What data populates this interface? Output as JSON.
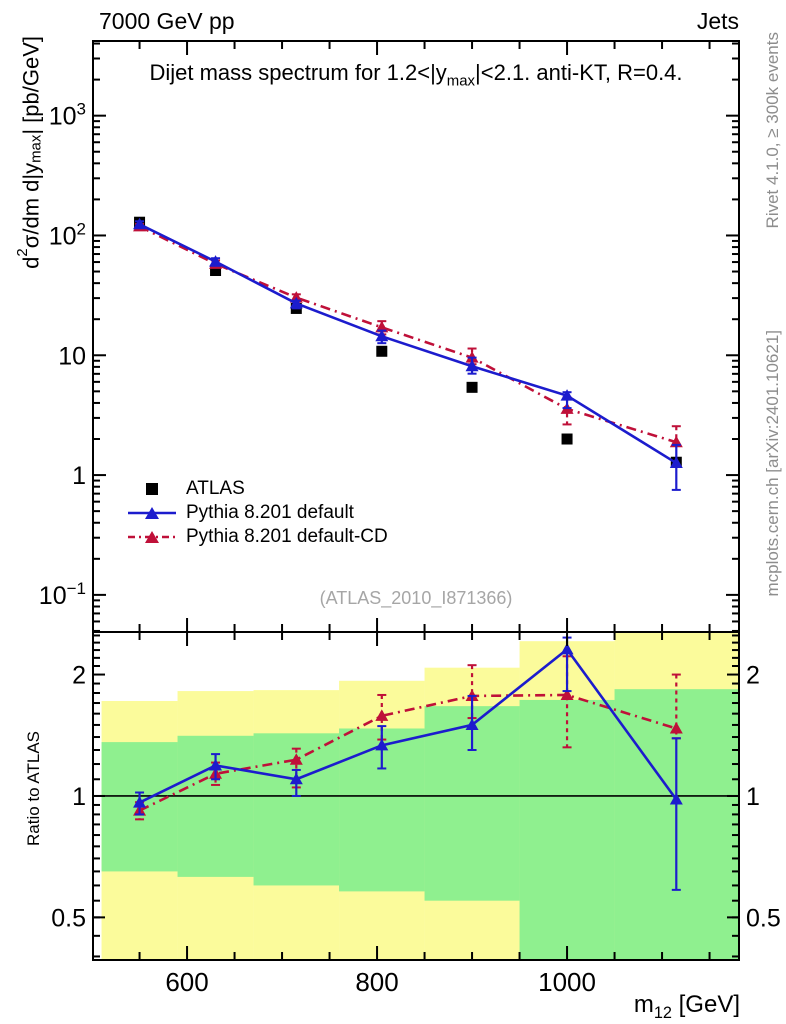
{
  "header": {
    "beam": "7000 GeV pp",
    "channel": "Jets"
  },
  "main_panel": {
    "title": {
      "p1": "Dijet mass spectrum for 1.2<|y",
      "sub": "max",
      "p2": "|<2.1.  anti-KT, R=0.4."
    },
    "y_title": {
      "p1": "d",
      "sup": "2",
      "p2": "σ/dm d|y",
      "sub": "max",
      "p3": "| [pb/GeV]"
    },
    "watermark": "(ATLAS_2010_I871366)"
  },
  "ratio_panel": {
    "y_title": "Ratio to ATLAS"
  },
  "x_axis": {
    "title": {
      "p1": "m",
      "sub": "12",
      "p2": " [GeV]"
    },
    "min": 501,
    "max": 1181,
    "major_ticks": [
      600,
      800,
      1000
    ],
    "tick_labels": [
      "600",
      "800",
      "1000"
    ],
    "minor_step": 50
  },
  "main_y_axis": {
    "top": 4200,
    "bottom": 0.049,
    "tick_labels": [
      {
        "text": "10",
        "exp": "3",
        "value": 1000
      },
      {
        "text": "10",
        "exp": "2",
        "value": 100
      },
      {
        "text": "10",
        "exp": "",
        "value": 10
      },
      {
        "text": "1",
        "exp": "",
        "value": 1
      },
      {
        "text": "10",
        "exp": "−1",
        "value": 0.1
      }
    ]
  },
  "ratio_y_axis": {
    "top": 2.55,
    "bottom": 0.392,
    "tick_labels": [
      {
        "text": "2",
        "value": 2
      },
      {
        "text": "1",
        "value": 1
      },
      {
        "text": "0.5",
        "value": 0.5
      }
    ]
  },
  "side_texts": {
    "rivet": "Rivet 4.1.0, ≥ 300k events",
    "mcplots": "mcplots.cern.ch [arXiv:2401.10621]"
  },
  "colors": {
    "blue": "#1c1ccd",
    "red": "#bf1039",
    "yellow_band": "#fbfb9b",
    "green_band": "#8ff08f",
    "black": "#000000"
  },
  "chart_data": {
    "type": "line",
    "title": "Dijet mass spectrum for 1.2<|ymax|<2.1. anti-KT, R=0.4.",
    "xlabel": "m12 [GeV]",
    "ylabel": "d2σ/dm d|ymax| [pb/GeV]",
    "ylabel_ratio": "Ratio to ATLAS",
    "x_log": false,
    "y_log": true,
    "ratio_log": true,
    "x_range": [
      501,
      1181
    ],
    "main_y_range": [
      0.049,
      4200
    ],
    "ratio_y_range": [
      0.392,
      2.55
    ],
    "x_bin_edges": [
      510,
      590,
      670,
      760,
      850,
      950,
      1050,
      1180
    ],
    "x_bin_centers": [
      550,
      630,
      715,
      805,
      900,
      1000,
      1115
    ],
    "series": [
      {
        "name": "ATLAS",
        "marker": "square",
        "line": "none",
        "color": "#000000",
        "values": [
          129,
          51,
          24.6,
          10.8,
          5.4,
          2.0,
          1.28
        ]
      },
      {
        "name": "Pythia 8.201 default",
        "marker": "triangle",
        "line": "solid",
        "color": "#1c1ccd",
        "values": [
          124,
          60.5,
          27.1,
          14.4,
          8.1,
          4.6,
          1.26
        ],
        "ratio": [
          0.963,
          1.19,
          1.1,
          1.335,
          1.5,
          2.31,
          0.98
        ],
        "ratio_err_lo": [
          0.9,
          1.1,
          1.0,
          1.17,
          1.3,
          1.82,
          0.585
        ],
        "ratio_err_hi": [
          1.02,
          1.27,
          1.16,
          1.49,
          1.77,
          2.47,
          1.39
        ]
      },
      {
        "name": "Pythia 8.201 default-CD",
        "marker": "triangle",
        "line": "dashdot",
        "color": "#bf1039",
        "values": [
          119,
          58,
          30.3,
          17.1,
          9.55,
          3.57,
          1.88
        ],
        "ratio": [
          0.92,
          1.135,
          1.23,
          1.58,
          1.77,
          1.78,
          1.47
        ],
        "ratio_err_lo": [
          0.875,
          1.065,
          1.05,
          1.38,
          1.56,
          1.32,
          1.39
        ],
        "ratio_err_hi": [
          0.965,
          1.21,
          1.31,
          1.78,
          2.11,
          2.22,
          2.0
        ]
      }
    ],
    "ratio_bands": {
      "yellow_top": [
        1.72,
        1.82,
        1.83,
        1.93,
        2.08,
        2.42,
        2.8
      ],
      "green_top": [
        1.36,
        1.41,
        1.43,
        1.47,
        1.67,
        1.73,
        1.84
      ],
      "green_bot": [
        0.65,
        0.63,
        0.6,
        0.58,
        0.55,
        0.3,
        0.3
      ],
      "yellow_bot": [
        0.3,
        0.3,
        0.3,
        0.3,
        0.3,
        0.3,
        0.3
      ],
      "ratio_ref_line": 1.0
    }
  }
}
